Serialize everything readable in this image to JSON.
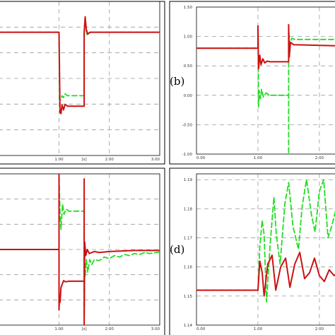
{
  "chart_data": [
    {
      "id": "a",
      "type": "line",
      "tag": "",
      "x_ticks": [
        {
          "v": 1.0,
          "label": "1.00"
        },
        {
          "v": 2.0,
          "label": "2.00"
        },
        {
          "v": 3.0,
          "label": "3.00"
        }
      ],
      "x_unit": "[s]",
      "y_ticks": [],
      "xlim": [
        -0.2,
        3.0
      ],
      "ylim": [
        -1.0,
        1.5
      ],
      "grid": true,
      "series": [
        {
          "color": "#22dd22",
          "dash": true,
          "width": 1.8,
          "x": [
            -0.2,
            1.0,
            1.01,
            1.03,
            1.06,
            1.09,
            1.12,
            1.17,
            1.5,
            1.5,
            1.52,
            1.54,
            1.56,
            1.6,
            3.0
          ],
          "y": [
            1.0,
            1.0,
            -0.1,
            -0.1,
            -0.03,
            -0.06,
            0.0,
            -0.03,
            -0.03,
            1.0,
            1.22,
            1.02,
            0.96,
            1.0,
            1.0
          ]
        },
        {
          "color": "#cc1111",
          "dash": false,
          "width": 2.0,
          "x": [
            -0.2,
            1.0,
            1.02,
            1.04,
            1.06,
            1.09,
            1.12,
            1.17,
            1.5,
            1.5,
            1.52,
            1.54,
            1.57,
            1.62,
            3.0
          ],
          "y": [
            1.0,
            1.0,
            -0.3,
            -0.32,
            -0.18,
            -0.26,
            -0.17,
            -0.2,
            -0.2,
            1.0,
            1.25,
            1.05,
            0.97,
            1.0,
            1.0
          ]
        }
      ]
    },
    {
      "id": "b",
      "type": "line",
      "tag": "(b)",
      "x_ticks": [
        {
          "v": 0.0,
          "label": "0.00"
        },
        {
          "v": 1.0,
          "label": "1.00"
        },
        {
          "v": 2.0,
          "label": "2.00"
        }
      ],
      "x_unit": "",
      "y_ticks": [
        {
          "v": 1.5,
          "label": "1.50"
        },
        {
          "v": 1.0,
          "label": "1.00"
        },
        {
          "v": 0.5,
          "label": "0.50"
        },
        {
          "v": 0.0,
          "label": "0.00"
        },
        {
          "v": -0.5,
          "label": "-0.50"
        },
        {
          "v": -1.0,
          "label": "-1.00"
        }
      ],
      "xlim": [
        0.0,
        2.3
      ],
      "ylim": [
        -1.0,
        1.5
      ],
      "grid": true,
      "series": [
        {
          "color": "#22dd22",
          "dash": true,
          "width": 1.8,
          "x": [
            0.0,
            1.0,
            1.0,
            1.01,
            1.02,
            1.04,
            1.06,
            1.09,
            1.13,
            1.2,
            1.5,
            1.5,
            1.5,
            1.52,
            1.55,
            1.6,
            2.3
          ],
          "y": [
            0.8,
            0.8,
            1.18,
            -0.2,
            0.08,
            -0.06,
            0.1,
            -0.03,
            0.04,
            0.0,
            0.0,
            -1.0,
            1.1,
            0.87,
            0.97,
            0.95,
            0.95
          ]
        },
        {
          "color": "#cc1111",
          "dash": false,
          "width": 2.0,
          "x": [
            0.0,
            1.0,
            1.0,
            1.01,
            1.03,
            1.05,
            1.08,
            1.11,
            1.15,
            1.2,
            1.5,
            1.5,
            1.51,
            1.53,
            1.58,
            2.3
          ],
          "y": [
            0.8,
            0.8,
            1.18,
            0.45,
            0.68,
            0.52,
            0.62,
            0.55,
            0.58,
            0.57,
            0.57,
            1.2,
            0.65,
            0.9,
            0.86,
            0.84
          ]
        }
      ]
    },
    {
      "id": "c",
      "type": "line",
      "tag": "",
      "x_ticks": [
        {
          "v": 1.0,
          "label": "1.00"
        },
        {
          "v": 2.0,
          "label": "2.00"
        },
        {
          "v": 3.0,
          "label": "3.00"
        }
      ],
      "x_unit": "[s]",
      "y_ticks": [],
      "xlim": [
        -0.2,
        3.0
      ],
      "ylim": [
        -1.5,
        1.5
      ],
      "grid": true,
      "series": [
        {
          "color": "#22dd22",
          "dash": true,
          "width": 1.8,
          "x": [
            -0.2,
            1.0,
            1.0,
            1.02,
            1.04,
            1.07,
            1.1,
            1.14,
            1.2,
            1.5,
            1.5,
            1.51,
            1.52,
            1.54,
            1.57,
            1.61,
            1.65,
            1.7,
            1.8,
            1.9,
            2.0,
            2.1,
            2.2,
            2.3,
            2.4,
            2.5,
            2.6,
            2.7,
            2.8,
            3.0
          ],
          "y": [
            0.0,
            0.0,
            1.5,
            0.7,
            0.4,
            0.9,
            0.7,
            0.8,
            0.76,
            0.76,
            -1.4,
            -0.25,
            -0.55,
            -0.2,
            -0.45,
            -0.2,
            -0.3,
            -0.2,
            -0.22,
            -0.15,
            -0.18,
            -0.12,
            -0.15,
            -0.1,
            -0.12,
            -0.08,
            -0.1,
            -0.06,
            -0.08,
            -0.05
          ]
        },
        {
          "color": "#cc1111",
          "dash": false,
          "width": 2.0,
          "x": [
            -0.2,
            1.0,
            1.0,
            1.0,
            1.01,
            1.02,
            1.04,
            1.06,
            1.09,
            1.13,
            1.2,
            1.5,
            1.5,
            1.5,
            1.51,
            1.53,
            1.56,
            1.6,
            1.7,
            1.8,
            2.0,
            2.5,
            3.0
          ],
          "y": [
            0.0,
            0.0,
            1.5,
            -1.2,
            -0.95,
            -1.05,
            -0.75,
            -0.7,
            -0.62,
            -0.64,
            -0.63,
            -0.63,
            1.4,
            -1.5,
            0.15,
            -0.12,
            0.0,
            -0.08,
            -0.04,
            -0.06,
            -0.04,
            -0.02,
            -0.02
          ]
        }
      ]
    },
    {
      "id": "d",
      "type": "line",
      "tag": "(d)",
      "x_ticks": [
        {
          "v": 0.0,
          "label": "0.00"
        },
        {
          "v": 1.0,
          "label": "1.00"
        },
        {
          "v": 2.0,
          "label": "2.00"
        }
      ],
      "x_unit": "",
      "y_ticks": [
        {
          "v": 1.19,
          "label": "1.19"
        },
        {
          "v": 1.18,
          "label": "1.18"
        },
        {
          "v": 1.17,
          "label": "1.17"
        },
        {
          "v": 1.16,
          "label": "1.16"
        },
        {
          "v": 1.15,
          "label": "1.15"
        },
        {
          "v": 1.14,
          "label": "1.14"
        }
      ],
      "xlim": [
        0.0,
        2.3
      ],
      "ylim": [
        1.14,
        1.192
      ],
      "grid": true,
      "series": [
        {
          "color": "#22dd22",
          "dash": true,
          "width": 1.8,
          "x": [
            0.0,
            1.0,
            1.03,
            1.07,
            1.1,
            1.14,
            1.2,
            1.26,
            1.3,
            1.36,
            1.44,
            1.5,
            1.57,
            1.66,
            1.72,
            1.79,
            1.87,
            1.93,
            2.0,
            2.07,
            2.14,
            2.2,
            2.26,
            2.3
          ],
          "y": [
            1.152,
            1.152,
            1.167,
            1.176,
            1.171,
            1.148,
            1.168,
            1.184,
            1.171,
            1.161,
            1.182,
            1.189,
            1.174,
            1.166,
            1.181,
            1.19,
            1.178,
            1.172,
            1.186,
            1.19,
            1.17,
            1.174,
            1.179,
            1.169
          ]
        },
        {
          "color": "#cc1111",
          "dash": false,
          "width": 2.0,
          "x": [
            0.0,
            1.0,
            1.03,
            1.07,
            1.1,
            1.16,
            1.23,
            1.29,
            1.37,
            1.45,
            1.52,
            1.6,
            1.68,
            1.76,
            1.84,
            1.92,
            2.0,
            2.08,
            2.16,
            2.24,
            2.3
          ],
          "y": [
            1.152,
            1.152,
            1.162,
            1.158,
            1.15,
            1.161,
            1.164,
            1.152,
            1.16,
            1.163,
            1.153,
            1.161,
            1.165,
            1.156,
            1.158,
            1.163,
            1.157,
            1.155,
            1.159,
            1.157,
            1.158
          ]
        }
      ]
    }
  ]
}
